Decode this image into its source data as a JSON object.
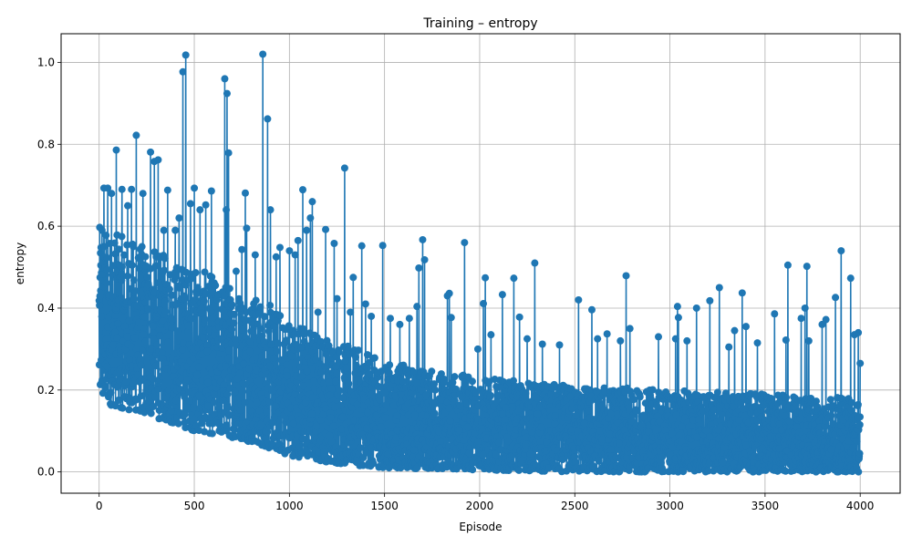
{
  "chart_data": {
    "type": "line",
    "title": "Training – entropy",
    "xlabel": "Episode",
    "ylabel": "entropy",
    "xlim": [
      -200,
      4210
    ],
    "ylim": [
      -0.052,
      1.07
    ],
    "xticks": [
      0,
      500,
      1000,
      1500,
      2000,
      2500,
      3000,
      3500,
      4000
    ],
    "yticks": [
      0.0,
      0.2,
      0.4,
      0.6,
      0.8,
      1.0
    ],
    "xtick_labels": [
      "0",
      "500",
      "1000",
      "1500",
      "2000",
      "2500",
      "3000",
      "3500",
      "4000"
    ],
    "ytick_labels": [
      "0.0",
      "0.2",
      "0.4",
      "0.6",
      "0.8",
      "1.0"
    ],
    "grid": true,
    "legend": "none",
    "series": [
      {
        "color": "#1f77b4",
        "marker": "circle",
        "x_start": 0,
        "x_end": 4000,
        "n_points": 4000,
        "envelope": [
          {
            "x": 0,
            "low": 0.17,
            "high": 0.6
          },
          {
            "x": 250,
            "low": 0.14,
            "high": 0.55
          },
          {
            "x": 500,
            "low": 0.1,
            "high": 0.5
          },
          {
            "x": 750,
            "low": 0.08,
            "high": 0.45
          },
          {
            "x": 1000,
            "low": 0.04,
            "high": 0.38
          },
          {
            "x": 1250,
            "low": 0.02,
            "high": 0.32
          },
          {
            "x": 1500,
            "low": 0.01,
            "high": 0.27
          },
          {
            "x": 2000,
            "low": 0.005,
            "high": 0.23
          },
          {
            "x": 2500,
            "low": 0.0,
            "high": 0.21
          },
          {
            "x": 3000,
            "low": 0.0,
            "high": 0.2
          },
          {
            "x": 3500,
            "low": 0.0,
            "high": 0.19
          },
          {
            "x": 4000,
            "low": 0.0,
            "high": 0.18
          }
        ],
        "peaks": [
          {
            "x": 5,
            "y": 0.475
          },
          {
            "x": 10,
            "y": 0.548
          },
          {
            "x": 15,
            "y": 0.59
          },
          {
            "x": 25,
            "y": 0.693
          },
          {
            "x": 45,
            "y": 0.693
          },
          {
            "x": 65,
            "y": 0.68
          },
          {
            "x": 90,
            "y": 0.786
          },
          {
            "x": 120,
            "y": 0.69
          },
          {
            "x": 150,
            "y": 0.65
          },
          {
            "x": 170,
            "y": 0.69
          },
          {
            "x": 195,
            "y": 0.822
          },
          {
            "x": 230,
            "y": 0.68
          },
          {
            "x": 270,
            "y": 0.781
          },
          {
            "x": 290,
            "y": 0.758
          },
          {
            "x": 310,
            "y": 0.762
          },
          {
            "x": 340,
            "y": 0.59
          },
          {
            "x": 360,
            "y": 0.688
          },
          {
            "x": 400,
            "y": 0.59
          },
          {
            "x": 420,
            "y": 0.62
          },
          {
            "x": 440,
            "y": 0.977
          },
          {
            "x": 455,
            "y": 1.018
          },
          {
            "x": 480,
            "y": 0.655
          },
          {
            "x": 500,
            "y": 0.693
          },
          {
            "x": 530,
            "y": 0.64
          },
          {
            "x": 560,
            "y": 0.652
          },
          {
            "x": 590,
            "y": 0.686
          },
          {
            "x": 620,
            "y": 0.42
          },
          {
            "x": 660,
            "y": 0.96
          },
          {
            "x": 668,
            "y": 0.64
          },
          {
            "x": 672,
            "y": 0.924
          },
          {
            "x": 680,
            "y": 0.779
          },
          {
            "x": 720,
            "y": 0.49
          },
          {
            "x": 750,
            "y": 0.543
          },
          {
            "x": 768,
            "y": 0.681
          },
          {
            "x": 775,
            "y": 0.595
          },
          {
            "x": 820,
            "y": 0.53
          },
          {
            "x": 860,
            "y": 1.02
          },
          {
            "x": 885,
            "y": 0.862
          },
          {
            "x": 900,
            "y": 0.64
          },
          {
            "x": 930,
            "y": 0.525
          },
          {
            "x": 950,
            "y": 0.548
          },
          {
            "x": 1000,
            "y": 0.54
          },
          {
            "x": 1030,
            "y": 0.53
          },
          {
            "x": 1045,
            "y": 0.565
          },
          {
            "x": 1070,
            "y": 0.689
          },
          {
            "x": 1090,
            "y": 0.59
          },
          {
            "x": 1110,
            "y": 0.62
          },
          {
            "x": 1120,
            "y": 0.66
          },
          {
            "x": 1150,
            "y": 0.39
          },
          {
            "x": 1190,
            "y": 0.592
          },
          {
            "x": 1235,
            "y": 0.558
          },
          {
            "x": 1250,
            "y": 0.423
          },
          {
            "x": 1290,
            "y": 0.742
          },
          {
            "x": 1320,
            "y": 0.39
          },
          {
            "x": 1335,
            "y": 0.475
          },
          {
            "x": 1380,
            "y": 0.552
          },
          {
            "x": 1400,
            "y": 0.41
          },
          {
            "x": 1430,
            "y": 0.38
          },
          {
            "x": 1490,
            "y": 0.553
          },
          {
            "x": 1530,
            "y": 0.375
          },
          {
            "x": 1580,
            "y": 0.36
          },
          {
            "x": 1630,
            "y": 0.375
          },
          {
            "x": 1670,
            "y": 0.404
          },
          {
            "x": 1680,
            "y": 0.498
          },
          {
            "x": 1700,
            "y": 0.567
          },
          {
            "x": 1710,
            "y": 0.518
          },
          {
            "x": 1830,
            "y": 0.43
          },
          {
            "x": 1840,
            "y": 0.436
          },
          {
            "x": 1850,
            "y": 0.377
          },
          {
            "x": 1920,
            "y": 0.56
          },
          {
            "x": 1990,
            "y": 0.3
          },
          {
            "x": 2020,
            "y": 0.411
          },
          {
            "x": 2030,
            "y": 0.474
          },
          {
            "x": 2060,
            "y": 0.335
          },
          {
            "x": 2120,
            "y": 0.433
          },
          {
            "x": 2180,
            "y": 0.473
          },
          {
            "x": 2210,
            "y": 0.378
          },
          {
            "x": 2250,
            "y": 0.325
          },
          {
            "x": 2290,
            "y": 0.51
          },
          {
            "x": 2330,
            "y": 0.312
          },
          {
            "x": 2420,
            "y": 0.31
          },
          {
            "x": 2520,
            "y": 0.42
          },
          {
            "x": 2590,
            "y": 0.396
          },
          {
            "x": 2620,
            "y": 0.325
          },
          {
            "x": 2670,
            "y": 0.337
          },
          {
            "x": 2740,
            "y": 0.32
          },
          {
            "x": 2770,
            "y": 0.479
          },
          {
            "x": 2790,
            "y": 0.35
          },
          {
            "x": 2940,
            "y": 0.33
          },
          {
            "x": 3030,
            "y": 0.325
          },
          {
            "x": 3040,
            "y": 0.404
          },
          {
            "x": 3045,
            "y": 0.377
          },
          {
            "x": 3090,
            "y": 0.32
          },
          {
            "x": 3140,
            "y": 0.4
          },
          {
            "x": 3210,
            "y": 0.418
          },
          {
            "x": 3260,
            "y": 0.45
          },
          {
            "x": 3310,
            "y": 0.305
          },
          {
            "x": 3340,
            "y": 0.345
          },
          {
            "x": 3380,
            "y": 0.437
          },
          {
            "x": 3400,
            "y": 0.355
          },
          {
            "x": 3460,
            "y": 0.315
          },
          {
            "x": 3550,
            "y": 0.386
          },
          {
            "x": 3610,
            "y": 0.322
          },
          {
            "x": 3620,
            "y": 0.505
          },
          {
            "x": 3690,
            "y": 0.375
          },
          {
            "x": 3710,
            "y": 0.4
          },
          {
            "x": 3720,
            "y": 0.502
          },
          {
            "x": 3730,
            "y": 0.32
          },
          {
            "x": 3800,
            "y": 0.36
          },
          {
            "x": 3820,
            "y": 0.372
          },
          {
            "x": 3870,
            "y": 0.426
          },
          {
            "x": 3900,
            "y": 0.54
          },
          {
            "x": 3950,
            "y": 0.473
          },
          {
            "x": 3970,
            "y": 0.335
          },
          {
            "x": 3990,
            "y": 0.34
          },
          {
            "x": 4000,
            "y": 0.265
          }
        ]
      }
    ]
  }
}
